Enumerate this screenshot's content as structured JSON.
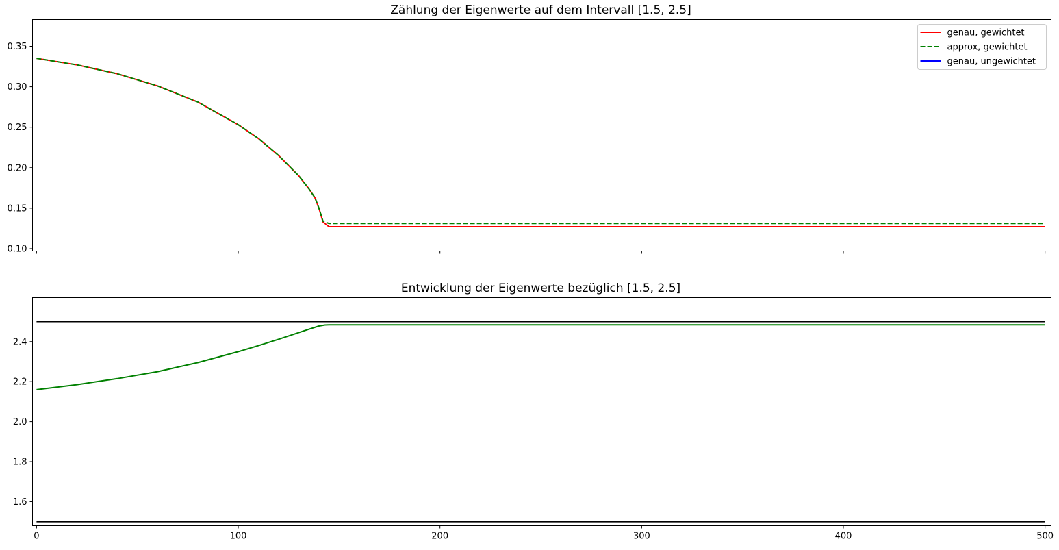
{
  "chart_data": [
    {
      "type": "line",
      "title": "Zählung der Eigenwerte auf dem Intervall [1.5, 2.5]",
      "xlabel": "",
      "ylabel": "",
      "xlim": [
        -2,
        503
      ],
      "ylim": [
        0.097,
        0.383
      ],
      "xticks": [
        0,
        100,
        200,
        300,
        400,
        500
      ],
      "xtick_labels_visible": false,
      "yticks": [
        0.1,
        0.15,
        0.2,
        0.25,
        0.3,
        0.35
      ],
      "ytick_labels": [
        "0.10",
        "0.15",
        "0.20",
        "0.25",
        "0.30",
        "0.35"
      ],
      "grid": false,
      "legend": "top-right",
      "series": [
        {
          "name": "genau, gewichtet",
          "color": "#ff0000",
          "style": "solid",
          "x": [
            0,
            20,
            40,
            60,
            80,
            100,
            110,
            120,
            130,
            135,
            138,
            140,
            142,
            145,
            150,
            200,
            300,
            400,
            500
          ],
          "y": [
            0.335,
            0.327,
            0.316,
            0.301,
            0.281,
            0.253,
            0.236,
            0.215,
            0.19,
            0.174,
            0.163,
            0.15,
            0.133,
            0.127,
            0.127,
            0.127,
            0.127,
            0.127,
            0.127
          ]
        },
        {
          "name": "approx, gewichtet",
          "color": "#008000",
          "style": "dashed",
          "x": [
            0,
            20,
            40,
            60,
            80,
            100,
            110,
            120,
            130,
            135,
            138,
            140,
            142,
            145,
            150,
            200,
            300,
            400,
            500
          ],
          "y": [
            0.335,
            0.327,
            0.316,
            0.301,
            0.281,
            0.253,
            0.236,
            0.215,
            0.19,
            0.174,
            0.163,
            0.15,
            0.134,
            0.131,
            0.131,
            0.131,
            0.131,
            0.131,
            0.131
          ]
        },
        {
          "name": "genau, ungewichtet",
          "color": "#0000ff",
          "style": "solid",
          "x": [],
          "y": []
        }
      ]
    },
    {
      "type": "line",
      "title": "Entwicklung der Eigenwerte bezüglich [1.5, 2.5]",
      "xlabel": "",
      "ylabel": "",
      "xlim": [
        -2,
        503
      ],
      "ylim": [
        1.48,
        2.62
      ],
      "xticks": [
        0,
        100,
        200,
        300,
        400,
        500
      ],
      "xtick_labels": [
        "0",
        "100",
        "200",
        "300",
        "400",
        "500"
      ],
      "yticks": [
        1.6,
        1.8,
        2.0,
        2.2,
        2.4
      ],
      "ytick_labels": [
        "1.6",
        "1.8",
        "2.0",
        "2.2",
        "2.4"
      ],
      "grid": false,
      "hlines": [
        {
          "y": 2.5,
          "color": "#000000"
        },
        {
          "y": 1.5,
          "color": "#000000"
        }
      ],
      "series": [
        {
          "color": "#008000",
          "style": "solid",
          "x": [
            0,
            20,
            40,
            60,
            80,
            100,
            110,
            120,
            130,
            135,
            140,
            143,
            145,
            150,
            200,
            300,
            400,
            500
          ],
          "y": [
            2.16,
            2.185,
            2.215,
            2.25,
            2.295,
            2.35,
            2.38,
            2.412,
            2.445,
            2.462,
            2.478,
            2.483,
            2.484,
            2.484,
            2.484,
            2.484,
            2.484,
            2.484
          ]
        }
      ]
    }
  ]
}
